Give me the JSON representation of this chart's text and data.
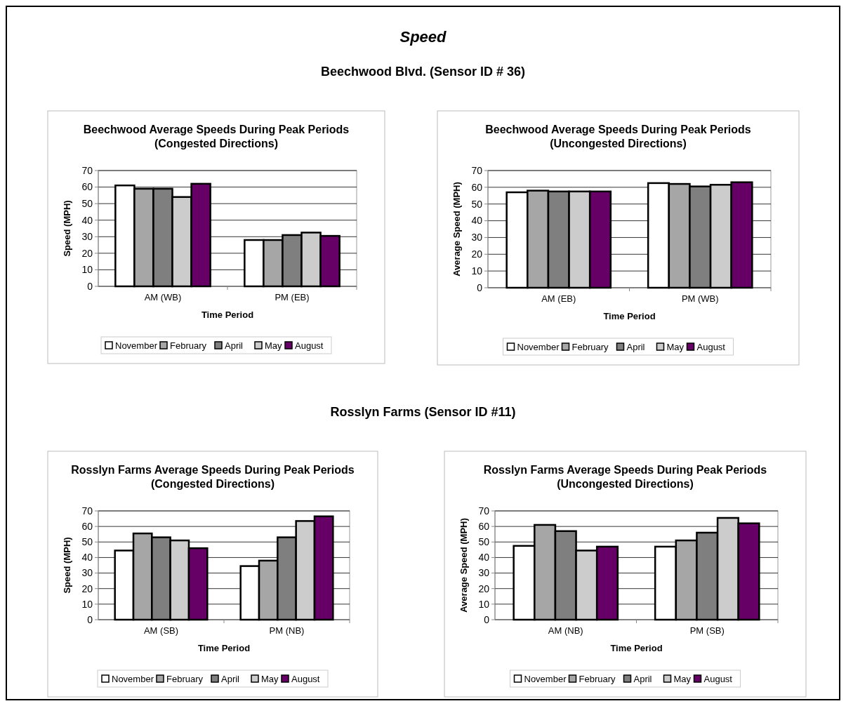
{
  "chart_data": [
    {
      "type": "bar",
      "title": "Beechwood Average Speeds During Peak Periods (Congested Directions)",
      "annotations": [
        "Speed",
        "Beechwood Blvd.  (Sensor ID # 36)"
      ],
      "xlabel": "Time Period",
      "ylabel": "Speed (MPH)",
      "categories": [
        "AM (WB)",
        "PM (EB)"
      ],
      "ylim": [
        0,
        70
      ],
      "yticks": [
        0,
        10,
        20,
        30,
        40,
        50,
        60,
        70
      ],
      "grid": "y",
      "legend": "bottom",
      "series": [
        {
          "name": "November",
          "color": "#ffffff",
          "values": [
            61,
            28
          ]
        },
        {
          "name": "February",
          "color": "#a6a6a6",
          "values": [
            59,
            28
          ]
        },
        {
          "name": "April",
          "color": "#7f7f7f",
          "values": [
            59,
            31
          ]
        },
        {
          "name": "May",
          "color": "#cccccc",
          "values": [
            54,
            32.5
          ]
        },
        {
          "name": "August",
          "color": "#660066",
          "values": [
            62,
            30.5
          ]
        }
      ]
    },
    {
      "type": "bar",
      "title": "Beechwood Average Speeds During Peak Periods (Uncongested Directions)",
      "xlabel": "Time Period",
      "ylabel": "Average Speed (MPH)",
      "categories": [
        "AM (EB)",
        "PM (WB)"
      ],
      "ylim": [
        0,
        70
      ],
      "yticks": [
        0,
        10,
        20,
        30,
        40,
        50,
        60,
        70
      ],
      "grid": "y",
      "legend": "bottom",
      "series": [
        {
          "name": "November",
          "color": "#ffffff",
          "values": [
            57,
            62.5
          ]
        },
        {
          "name": "February",
          "color": "#a6a6a6",
          "values": [
            58,
            62
          ]
        },
        {
          "name": "April",
          "color": "#7f7f7f",
          "values": [
            57.5,
            60.5
          ]
        },
        {
          "name": "May",
          "color": "#cccccc",
          "values": [
            57.5,
            61.5
          ]
        },
        {
          "name": "August",
          "color": "#660066",
          "values": [
            57.5,
            63
          ]
        }
      ]
    },
    {
      "type": "bar",
      "title": "Rosslyn Farms Average Speeds During Peak Periods (Congested Directions)",
      "annotations": [
        "Rosslyn Farms  (Sensor ID #11)"
      ],
      "xlabel": "Time Period",
      "ylabel": "Speed (MPH)",
      "categories": [
        "AM (SB)",
        "PM (NB)"
      ],
      "ylim": [
        0,
        70
      ],
      "yticks": [
        0,
        10,
        20,
        30,
        40,
        50,
        60,
        70
      ],
      "grid": "y",
      "legend": "bottom",
      "series": [
        {
          "name": "November",
          "color": "#ffffff",
          "values": [
            44.5,
            34.5
          ]
        },
        {
          "name": "February",
          "color": "#a6a6a6",
          "values": [
            55.5,
            38
          ]
        },
        {
          "name": "April",
          "color": "#7f7f7f",
          "values": [
            53,
            53
          ]
        },
        {
          "name": "May",
          "color": "#cccccc",
          "values": [
            51,
            63.5
          ]
        },
        {
          "name": "August",
          "color": "#660066",
          "values": [
            46,
            66.5
          ]
        }
      ]
    },
    {
      "type": "bar",
      "title": "Rosslyn Farms Average Speeds During Peak Periods (Uncongested Directions)",
      "xlabel": "Time Period",
      "ylabel": "Average Speed (MPH)",
      "categories": [
        "AM (NB)",
        "PM (SB)"
      ],
      "ylim": [
        0,
        70
      ],
      "yticks": [
        0,
        10,
        20,
        30,
        40,
        50,
        60,
        70
      ],
      "grid": "y",
      "legend": "bottom",
      "series": [
        {
          "name": "November",
          "color": "#ffffff",
          "values": [
            47.5,
            47
          ]
        },
        {
          "name": "February",
          "color": "#a6a6a6",
          "values": [
            61,
            51
          ]
        },
        {
          "name": "April",
          "color": "#7f7f7f",
          "values": [
            57,
            56
          ]
        },
        {
          "name": "May",
          "color": "#cccccc",
          "values": [
            44.5,
            65.5
          ]
        },
        {
          "name": "August",
          "color": "#660066",
          "values": [
            47,
            62
          ]
        }
      ]
    }
  ]
}
